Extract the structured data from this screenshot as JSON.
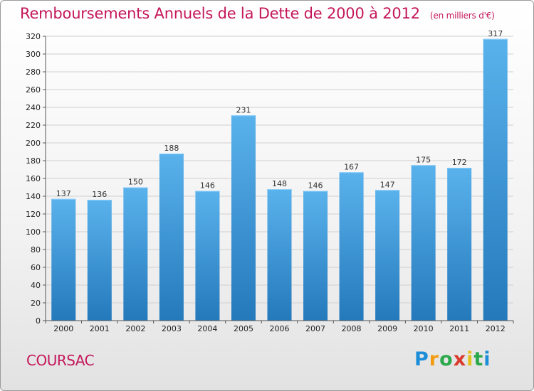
{
  "title": "Remboursements Annuels de la Dette de 2000 à 2012",
  "unit_note": "(en milliers d'€)",
  "city": "COURSAC",
  "logo": {
    "letters": [
      "P",
      "r",
      "o",
      "x",
      "i",
      "t",
      "i"
    ],
    "colors": [
      "#1c8ed8",
      "#f39c12",
      "#2aa84a",
      "#d93a2b",
      "#e5c21b",
      "#2aa84a",
      "#1c8ed8"
    ]
  },
  "colors": {
    "title": "#c4175a",
    "bar_top": "#5ab2ec",
    "bar_bottom": "#2479bb",
    "grid": "#d0d0d0"
  },
  "chart_data": {
    "type": "bar",
    "title": "Remboursements Annuels de la Dette de 2000 à 2012",
    "categories": [
      "2000",
      "2001",
      "2002",
      "2003",
      "2004",
      "2005",
      "2006",
      "2007",
      "2008",
      "2009",
      "2010",
      "2011",
      "2012"
    ],
    "values": [
      137,
      136,
      150,
      188,
      146,
      231,
      148,
      146,
      167,
      147,
      175,
      172,
      317
    ],
    "ylim": [
      0,
      320
    ],
    "yticks": [
      0,
      20,
      40,
      60,
      80,
      100,
      120,
      140,
      160,
      180,
      200,
      220,
      240,
      260,
      280,
      300,
      320
    ],
    "grid": true,
    "data_labels": true
  }
}
